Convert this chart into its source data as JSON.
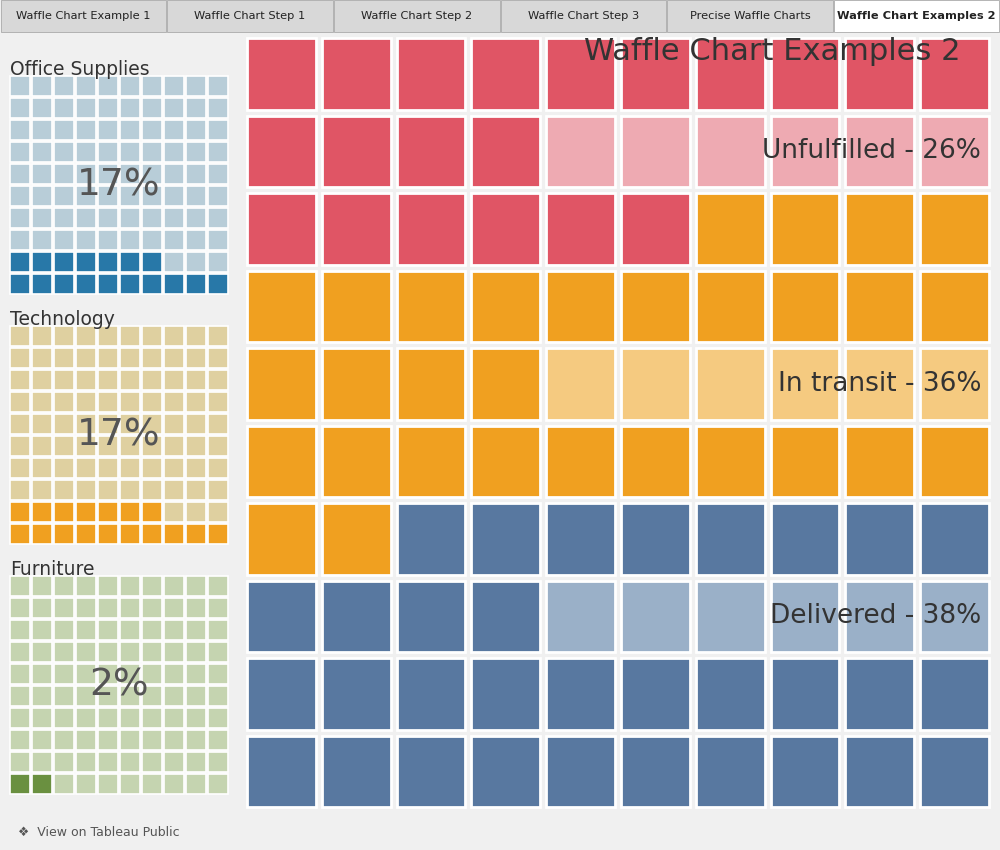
{
  "title": "Waffle Chart Examples 2",
  "tab_labels": [
    "Waffle Chart Example 1",
    "Waffle Chart Step 1",
    "Waffle Chart Step 2",
    "Waffle Chart Step 3",
    "Precise Waffle Charts",
    "Waffle Chart Examples 2"
  ],
  "active_tab": "Waffle Chart Examples 2",
  "background_color": "#f0f0f0",
  "tab_bg": "#d8d8d8",
  "active_tab_bg": "#ffffff",
  "left_charts": [
    {
      "label": "Office Supplies",
      "text": "17%",
      "filled": 17,
      "light_color": "#b8cdd8",
      "dark_color": "#2878a8"
    },
    {
      "label": "Technology",
      "text": "17%",
      "filled": 17,
      "light_color": "#dfd0a0",
      "dark_color": "#f0a020"
    },
    {
      "label": "Furniture",
      "text": "2%",
      "filled": 2,
      "light_color": "#c5d4b0",
      "dark_color": "#6a9040"
    }
  ],
  "right_sections": [
    {
      "label": "Unfulfilled - 26%",
      "cells": 26,
      "color": "#e05565",
      "light_color": "#eeaab2"
    },
    {
      "label": "In transit - 36%",
      "cells": 36,
      "color": "#f0a020",
      "light_color": "#f5ca80"
    },
    {
      "label": "Delivered - 38%",
      "cells": 38,
      "color": "#5878a0",
      "light_color": "#9ab0c8"
    }
  ],
  "footer_text": "View on Tableau Public"
}
